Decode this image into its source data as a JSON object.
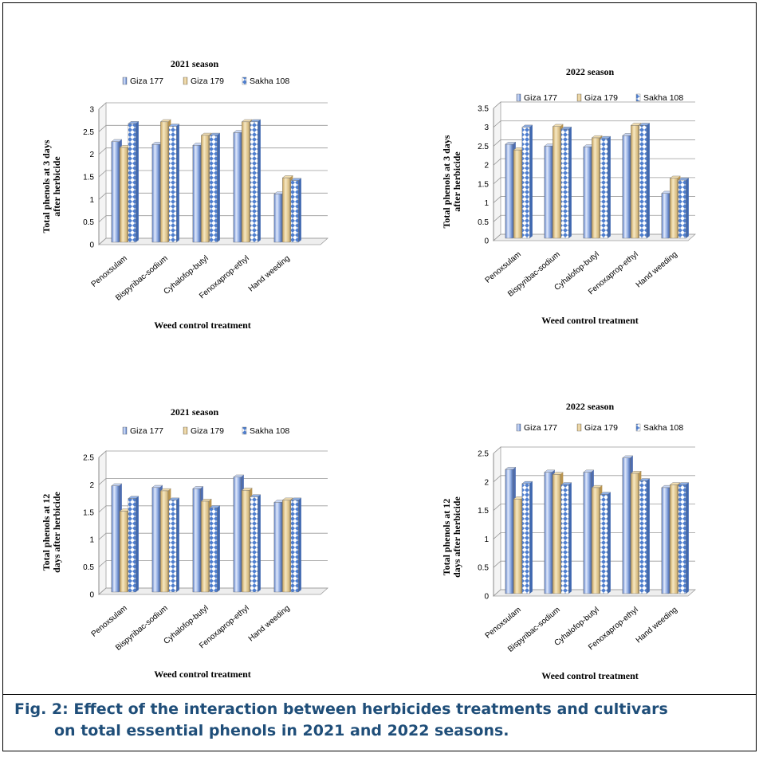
{
  "figure": {
    "caption_line1": "Fig. 2: Effect of the interaction between herbicides treatments and cultivars",
    "caption_line2": "on total essential phenols in 2021 and 2022 seasons."
  },
  "colors": {
    "Giza 177": "#7f9fd8",
    "Giza 179": "#e6cc92",
    "Sakha 108": "#4f7fcf"
  },
  "chart_data": [
    {
      "type": "bar",
      "title": "2021 season",
      "xlabel": "Weed control treatment",
      "ylabel_line1": "Total phenols at 3 days",
      "ylabel_line2": "after herbicide",
      "categories": [
        "Penoxsulam",
        "Bispyribac-sodium",
        "Cyhalofop-butyl",
        "Fenoxaprop-ethyl",
        "Hand weeding"
      ],
      "series": [
        {
          "name": "Giza 177",
          "values": [
            2.28,
            2.22,
            2.2,
            2.48,
            1.12
          ]
        },
        {
          "name": "Giza 179",
          "values": [
            2.15,
            2.72,
            2.42,
            2.72,
            1.48
          ]
        },
        {
          "name": "Sakha 108",
          "values": [
            2.68,
            2.62,
            2.42,
            2.72,
            1.42
          ]
        }
      ],
      "ylim": [
        0,
        3
      ],
      "yticks": [
        "0",
        "0.5",
        "1",
        "1.5",
        "2",
        "2.5",
        "3"
      ],
      "grid": true,
      "legend": "top"
    },
    {
      "type": "bar",
      "title": "2022 season",
      "xlabel": "Weed control treatment",
      "ylabel_line1": "Total phenols at 3 days",
      "ylabel_line2": "after herbicide",
      "categories": [
        "Penoxsulam",
        "Bispyribac-sodium",
        "Cyhalofop-butyl",
        "Fenoxaprop-ethyl",
        "Hand weeding"
      ],
      "series": [
        {
          "name": "Giza 177",
          "values": [
            2.55,
            2.5,
            2.48,
            2.78,
            1.25
          ]
        },
        {
          "name": "Giza 179",
          "values": [
            2.4,
            3.02,
            2.72,
            3.05,
            1.65
          ]
        },
        {
          "name": "Sakha 108",
          "values": [
            3.0,
            2.95,
            2.7,
            3.05,
            1.6
          ]
        }
      ],
      "ylim": [
        0,
        3.5
      ],
      "yticks": [
        "0",
        "0.5",
        "1",
        "1.5",
        "2",
        "2.5",
        "3",
        "3.5"
      ],
      "grid": true,
      "legend": "top"
    },
    {
      "type": "bar",
      "title": "2021 season",
      "xlabel": "Weed control treatment",
      "ylabel_line1": "Total phenols at 12",
      "ylabel_line2": "days after herbicide",
      "categories": [
        "Penoxsulam",
        "Bispyribac-sodium",
        "Cyhalofop-butyl",
        "Fenoxaprop-ethyl",
        "Hand weeding"
      ],
      "series": [
        {
          "name": "Giza 177",
          "values": [
            1.98,
            1.95,
            1.93,
            2.14,
            1.68
          ]
        },
        {
          "name": "Giza 179",
          "values": [
            1.52,
            1.89,
            1.7,
            1.9,
            1.72
          ]
        },
        {
          "name": "Sakha 108",
          "values": [
            1.75,
            1.72,
            1.58,
            1.78,
            1.72
          ]
        }
      ],
      "ylim": [
        0,
        2.5
      ],
      "yticks": [
        "0",
        "0.5",
        "1",
        "1.5",
        "2",
        "2.5"
      ],
      "grid": true,
      "legend": "top"
    },
    {
      "type": "bar",
      "title": "2022 season",
      "xlabel": "Weed control treatment",
      "ylabel_line1": "Total phenols at 12",
      "ylabel_line2": "days after herbicide",
      "categories": [
        "Penoxsulam",
        "Bispyribac-sodium",
        "Cyhalofop-butyl",
        "Fenoxaprop-ethyl",
        "Hand weeding"
      ],
      "series": [
        {
          "name": "Giza 177",
          "values": [
            2.22,
            2.17,
            2.17,
            2.42,
            1.9
          ]
        },
        {
          "name": "Giza 179",
          "values": [
            1.7,
            2.13,
            1.9,
            2.15,
            1.95
          ]
        },
        {
          "name": "Sakha 108",
          "values": [
            1.97,
            1.95,
            1.78,
            2.02,
            1.95
          ]
        }
      ],
      "ylim": [
        0,
        2.5
      ],
      "yticks": [
        "0",
        "0.5",
        "1",
        "1.5",
        "2",
        "2.5"
      ],
      "grid": true,
      "legend": "top"
    }
  ]
}
